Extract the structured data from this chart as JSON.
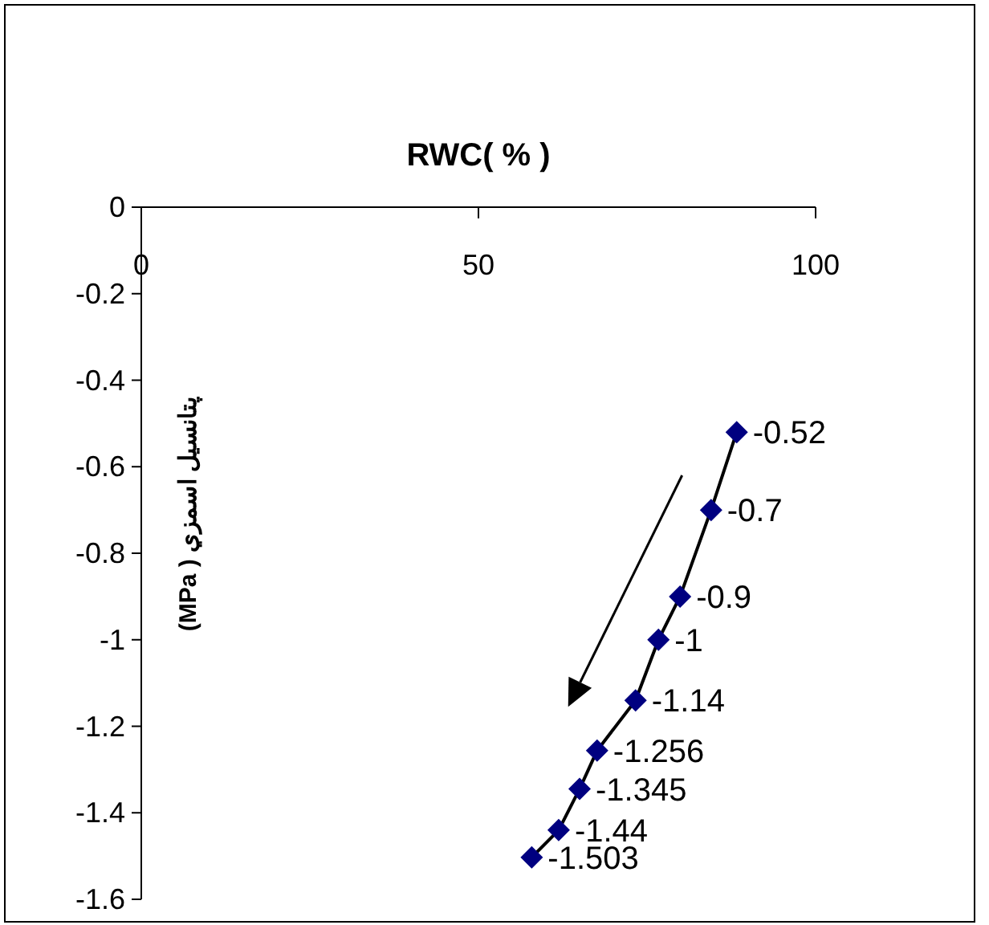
{
  "chart_data": {
    "type": "line",
    "xlabel": "RWC( % )",
    "ylabel": "پتانسيل اسمزي ( MPa)",
    "x": [
      88.3,
      84.5,
      79.9,
      76.7,
      73.3,
      67.6,
      65.0,
      61.9,
      57.9
    ],
    "series": [
      {
        "color": "#000080",
        "values": [
          -0.52,
          -0.7,
          -0.9,
          -1,
          -1.14,
          -1.256,
          -1.345,
          -1.44,
          -1.503
        ]
      }
    ],
    "xlim": [
      0,
      100
    ],
    "xticks": [
      0,
      50,
      100
    ],
    "ylim": [
      -1.6,
      0
    ],
    "yticks": [
      0,
      -0.2,
      -0.4,
      -0.6,
      -0.8,
      -1,
      -1.2,
      -1.4,
      -1.6
    ],
    "marker": "diamond",
    "data_labels": true
  }
}
